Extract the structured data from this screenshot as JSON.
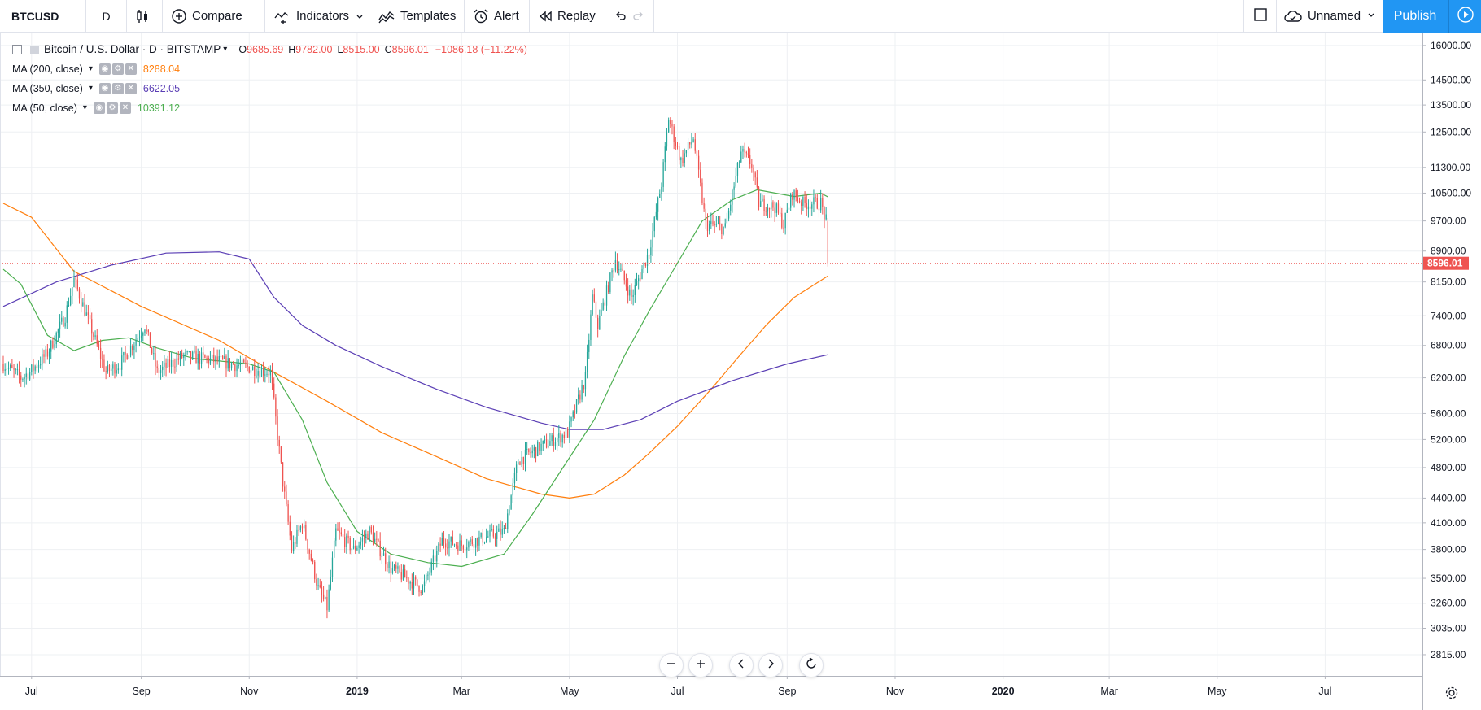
{
  "toolbar": {
    "symbol": "BTCUSD",
    "interval": "D",
    "compare_label": "Compare",
    "indicators_label": "Indicators",
    "templates_label": "Templates",
    "alert_label": "Alert",
    "replay_label": "Replay",
    "layout_name": "Unnamed",
    "publish_label": "Publish",
    "icons": [
      "candles-icon",
      "plus-circle-icon",
      "indicators-icon",
      "templates-icon",
      "alarm-clock-icon",
      "replay-icon",
      "undo-icon",
      "redo-icon",
      "square-icon",
      "cloud-icon",
      "gear-icon",
      "fullscreen-icon",
      "camera-icon",
      "play-icon"
    ]
  },
  "legend": {
    "title": "Bitcoin / U.S. Dollar · D · BITSTAMP",
    "open_label": "O",
    "open": "9685.69",
    "high_label": "H",
    "high": "9782.00",
    "low_label": "L",
    "low": "8515.00",
    "close_label": "C",
    "close": "8596.01",
    "change": "−1086.18 (−11.22%)",
    "indicators": [
      {
        "name": "MA (200, close)",
        "value": "8288.04",
        "color": "#ff7f0e"
      },
      {
        "name": "MA (350, close)",
        "value": "6622.05",
        "color": "#5b3fb5"
      },
      {
        "name": "MA (50, close)",
        "value": "10391.12",
        "color": "#4caf50"
      }
    ]
  },
  "chart_data": {
    "type": "candlestick",
    "symbol": "BTCUSD",
    "exchange": "BITSTAMP",
    "interval": "D",
    "price_axis": {
      "scale": "log",
      "range": [
        2650,
        16600
      ],
      "ticks": [
        "16000.00",
        "14500.00",
        "13500.00",
        "12500.00",
        "11300.00",
        "10500.00",
        "9700.00",
        "8900.00",
        "8150.00",
        "7400.00",
        "6800.00",
        "6200.00",
        "5600.00",
        "5200.00",
        "4800.00",
        "4400.00",
        "4100.00",
        "3800.00",
        "3500.00",
        "3260.00",
        "3035.00",
        "2815.00"
      ]
    },
    "time_axis": {
      "range": [
        "2018-06-15",
        "2020-08-25"
      ],
      "ticks": [
        {
          "label": "Jul",
          "date": "2018-07-01"
        },
        {
          "label": "Sep",
          "date": "2018-09-01"
        },
        {
          "label": "Nov",
          "date": "2018-11-01"
        },
        {
          "label": "2019",
          "date": "2019-01-01",
          "bold": true
        },
        {
          "label": "Mar",
          "date": "2019-03-01"
        },
        {
          "label": "May",
          "date": "2019-05-01"
        },
        {
          "label": "Jul",
          "date": "2019-07-01"
        },
        {
          "label": "Sep",
          "date": "2019-09-01"
        },
        {
          "label": "Nov",
          "date": "2019-11-01"
        },
        {
          "label": "2020",
          "date": "2020-01-01",
          "bold": true
        },
        {
          "label": "Mar",
          "date": "2020-03-01"
        },
        {
          "label": "May",
          "date": "2020-05-01"
        },
        {
          "label": "Jul",
          "date": "2020-07-01"
        }
      ]
    },
    "last_price": "8596.01",
    "price_anchors": [
      [
        "2018-06-15",
        6450
      ],
      [
        "2018-06-25",
        6200
      ],
      [
        "2018-06-30",
        6300
      ],
      [
        "2018-07-10",
        6650
      ],
      [
        "2018-07-20",
        7400
      ],
      [
        "2018-07-25",
        8200
      ],
      [
        "2018-08-05",
        7000
      ],
      [
        "2018-08-12",
        6300
      ],
      [
        "2018-08-20",
        6450
      ],
      [
        "2018-09-03",
        7200
      ],
      [
        "2018-09-10",
        6300
      ],
      [
        "2018-09-25",
        6600
      ],
      [
        "2018-10-15",
        6500
      ],
      [
        "2018-11-13",
        6300
      ],
      [
        "2018-11-20",
        4600
      ],
      [
        "2018-11-25",
        3800
      ],
      [
        "2018-12-01",
        4100
      ],
      [
        "2018-12-10",
        3400
      ],
      [
        "2018-12-15",
        3220
      ],
      [
        "2018-12-20",
        4000
      ],
      [
        "2018-12-30",
        3800
      ],
      [
        "2019-01-08",
        4000
      ],
      [
        "2019-01-20",
        3600
      ],
      [
        "2019-02-07",
        3400
      ],
      [
        "2019-02-18",
        3900
      ],
      [
        "2019-03-01",
        3850
      ],
      [
        "2019-03-25",
        4000
      ],
      [
        "2019-04-02",
        4900
      ],
      [
        "2019-04-15",
        5100
      ],
      [
        "2019-04-30",
        5300
      ],
      [
        "2019-05-10",
        6200
      ],
      [
        "2019-05-14",
        7800
      ],
      [
        "2019-05-17",
        7200
      ],
      [
        "2019-05-27",
        8700
      ],
      [
        "2019-06-05",
        7800
      ],
      [
        "2019-06-15",
        8900
      ],
      [
        "2019-06-22",
        10800
      ],
      [
        "2019-06-26",
        13000
      ],
      [
        "2019-07-03",
        11500
      ],
      [
        "2019-07-10",
        12300
      ],
      [
        "2019-07-17",
        9600
      ],
      [
        "2019-07-28",
        9500
      ],
      [
        "2019-08-06",
        11800
      ],
      [
        "2019-08-12",
        11400
      ],
      [
        "2019-08-16",
        10200
      ],
      [
        "2019-08-25",
        10100
      ],
      [
        "2019-08-30",
        9600
      ],
      [
        "2019-09-04",
        10500
      ],
      [
        "2019-09-10",
        10200
      ],
      [
        "2019-09-20",
        10200
      ],
      [
        "2019-09-23",
        9700
      ],
      [
        "2019-09-24",
        8596
      ]
    ],
    "ma_series": [
      {
        "name": "MA (200, close)",
        "color": "#ff7f0e",
        "points": [
          [
            "2018-06-15",
            10200
          ],
          [
            "2018-07-01",
            9800
          ],
          [
            "2018-07-25",
            8400
          ],
          [
            "2018-09-01",
            7600
          ],
          [
            "2018-10-15",
            6900
          ],
          [
            "2018-11-15",
            6300
          ],
          [
            "2018-12-15",
            5800
          ],
          [
            "2019-01-15",
            5300
          ],
          [
            "2019-02-15",
            4950
          ],
          [
            "2019-03-15",
            4650
          ],
          [
            "2019-04-15",
            4450
          ],
          [
            "2019-05-01",
            4400
          ],
          [
            "2019-05-15",
            4450
          ],
          [
            "2019-06-01",
            4700
          ],
          [
            "2019-06-15",
            5000
          ],
          [
            "2019-07-01",
            5400
          ],
          [
            "2019-07-20",
            6000
          ],
          [
            "2019-08-05",
            6600
          ],
          [
            "2019-08-20",
            7200
          ],
          [
            "2019-09-05",
            7800
          ],
          [
            "2019-09-24",
            8288
          ]
        ]
      },
      {
        "name": "MA (350, close)",
        "color": "#5b3fb5",
        "points": [
          [
            "2018-06-15",
            7600
          ],
          [
            "2018-07-15",
            8150
          ],
          [
            "2018-08-15",
            8550
          ],
          [
            "2018-09-15",
            8850
          ],
          [
            "2018-10-15",
            8880
          ],
          [
            "2018-11-01",
            8700
          ],
          [
            "2018-11-15",
            7800
          ],
          [
            "2018-12-01",
            7200
          ],
          [
            "2018-12-20",
            6800
          ],
          [
            "2019-01-15",
            6400
          ],
          [
            "2019-02-15",
            6000
          ],
          [
            "2019-03-15",
            5700
          ],
          [
            "2019-04-15",
            5450
          ],
          [
            "2019-05-01",
            5350
          ],
          [
            "2019-05-20",
            5350
          ],
          [
            "2019-06-10",
            5500
          ],
          [
            "2019-07-01",
            5800
          ],
          [
            "2019-08-01",
            6150
          ],
          [
            "2019-09-01",
            6450
          ],
          [
            "2019-09-24",
            6622
          ]
        ]
      },
      {
        "name": "MA (50, close)",
        "color": "#4caf50",
        "points": [
          [
            "2018-06-15",
            8450
          ],
          [
            "2018-06-25",
            8100
          ],
          [
            "2018-07-10",
            7000
          ],
          [
            "2018-07-25",
            6700
          ],
          [
            "2018-08-10",
            6900
          ],
          [
            "2018-08-25",
            6950
          ],
          [
            "2018-09-10",
            6750
          ],
          [
            "2018-10-01",
            6550
          ],
          [
            "2018-11-01",
            6450
          ],
          [
            "2018-11-15",
            6300
          ],
          [
            "2018-12-01",
            5500
          ],
          [
            "2018-12-15",
            4600
          ],
          [
            "2019-01-01",
            4000
          ],
          [
            "2019-01-20",
            3750
          ],
          [
            "2019-02-10",
            3660
          ],
          [
            "2019-03-01",
            3620
          ],
          [
            "2019-03-25",
            3750
          ],
          [
            "2019-04-10",
            4200
          ],
          [
            "2019-04-30",
            4900
          ],
          [
            "2019-05-15",
            5500
          ],
          [
            "2019-06-01",
            6600
          ],
          [
            "2019-06-15",
            7500
          ],
          [
            "2019-07-01",
            8600
          ],
          [
            "2019-07-15",
            9700
          ],
          [
            "2019-08-01",
            10300
          ],
          [
            "2019-08-15",
            10600
          ],
          [
            "2019-09-05",
            10400
          ],
          [
            "2019-09-20",
            10500
          ],
          [
            "2019-09-24",
            10391
          ]
        ]
      }
    ],
    "colors": {
      "up": "#26a69a",
      "down": "#ef5350",
      "grid": "#eef0f3",
      "last_price": "#ef5350"
    }
  }
}
